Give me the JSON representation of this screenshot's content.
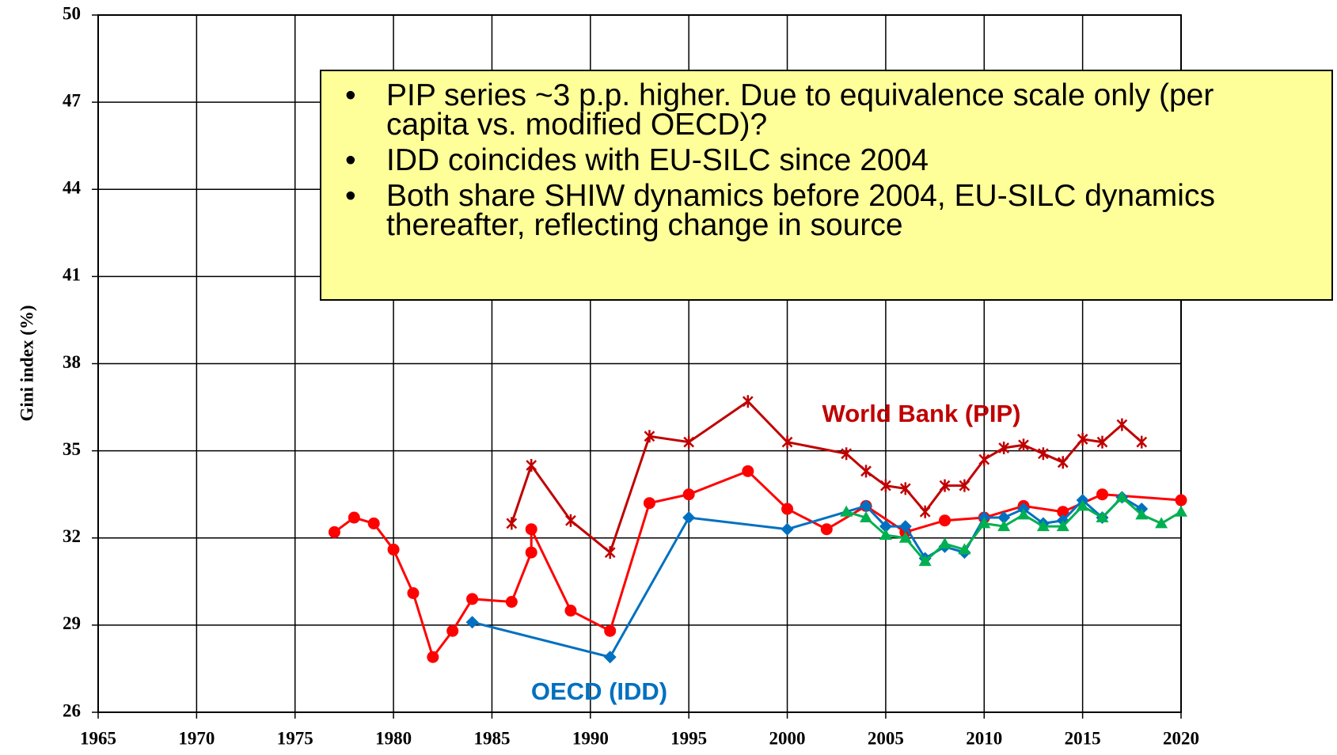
{
  "chart_data": {
    "type": "line",
    "y_label": "Gini index (%)",
    "xlim": [
      1965,
      2020
    ],
    "xticks": [
      1965,
      1970,
      1975,
      1980,
      1985,
      1990,
      1995,
      2000,
      2005,
      2010,
      2015,
      2020
    ],
    "ylim": [
      26,
      50
    ],
    "yticks": [
      26,
      29,
      32,
      35,
      38,
      41,
      44,
      47,
      50
    ],
    "grid": true,
    "annotations": [
      "PIP series ~3 p.p. higher. Due to equivalence scale only (per capita vs. modified OECD)?",
      "IDD coincides with EU-SILC since 2004",
      "Both share SHIW dynamics before 2004, EU-SILC dynamics thereafter, reflecting change in source"
    ],
    "series": [
      {
        "color": "#ff0000",
        "marker": "circle",
        "x": [
          1977,
          1978,
          1979,
          1980,
          1981,
          1982,
          1983,
          1984,
          1986,
          1987,
          1987,
          1989,
          1991,
          1993,
          1995,
          1998,
          2000,
          2002,
          2004,
          2006,
          2008,
          2010,
          2012,
          2014,
          2016,
          2020
        ],
        "values": [
          32.2,
          32.7,
          32.5,
          31.6,
          30.1,
          27.9,
          28.8,
          29.9,
          29.8,
          31.5,
          32.3,
          29.5,
          28.8,
          33.2,
          33.5,
          34.3,
          33.0,
          32.3,
          33.1,
          32.2,
          32.6,
          32.7,
          33.1,
          32.9,
          33.5,
          33.3
        ]
      },
      {
        "name": "World Bank (PIP)",
        "color": "#c00000",
        "marker": "star",
        "x": [
          1986,
          1987,
          1989,
          1991,
          1993,
          1995,
          1998,
          2000,
          2003,
          2004,
          2005,
          2006,
          2007,
          2008,
          2009,
          2010,
          2011,
          2012,
          2013,
          2014,
          2015,
          2016,
          2017,
          2018
        ],
        "values": [
          32.5,
          34.5,
          32.6,
          31.5,
          35.5,
          35.3,
          36.7,
          35.3,
          34.9,
          34.3,
          33.8,
          33.7,
          32.9,
          33.8,
          33.8,
          34.7,
          35.1,
          35.2,
          34.9,
          34.6,
          35.4,
          35.3,
          35.9,
          35.3
        ]
      },
      {
        "name": "OECD (IDD)",
        "color": "#0070c0",
        "marker": "diamond",
        "x": [
          1984,
          1991,
          1995,
          2000,
          2004,
          2005,
          2006,
          2007,
          2008,
          2009,
          2010,
          2011,
          2012,
          2013,
          2014,
          2015,
          2016,
          2017,
          2018
        ],
        "values": [
          29.1,
          27.9,
          32.7,
          32.3,
          33.1,
          32.4,
          32.4,
          31.3,
          31.7,
          31.5,
          32.7,
          32.7,
          33.0,
          32.5,
          32.6,
          33.3,
          32.7,
          33.4,
          33.0
        ]
      },
      {
        "color": "#00b050",
        "marker": "triangle",
        "x": [
          2003,
          2004,
          2005,
          2006,
          2007,
          2008,
          2009,
          2010,
          2011,
          2012,
          2013,
          2014,
          2015,
          2016,
          2017,
          2018,
          2019,
          2020
        ],
        "values": [
          32.9,
          32.7,
          32.1,
          32.0,
          31.2,
          31.8,
          31.6,
          32.5,
          32.4,
          32.8,
          32.4,
          32.4,
          33.1,
          32.7,
          33.4,
          32.8,
          32.5,
          32.9
        ]
      }
    ]
  }
}
